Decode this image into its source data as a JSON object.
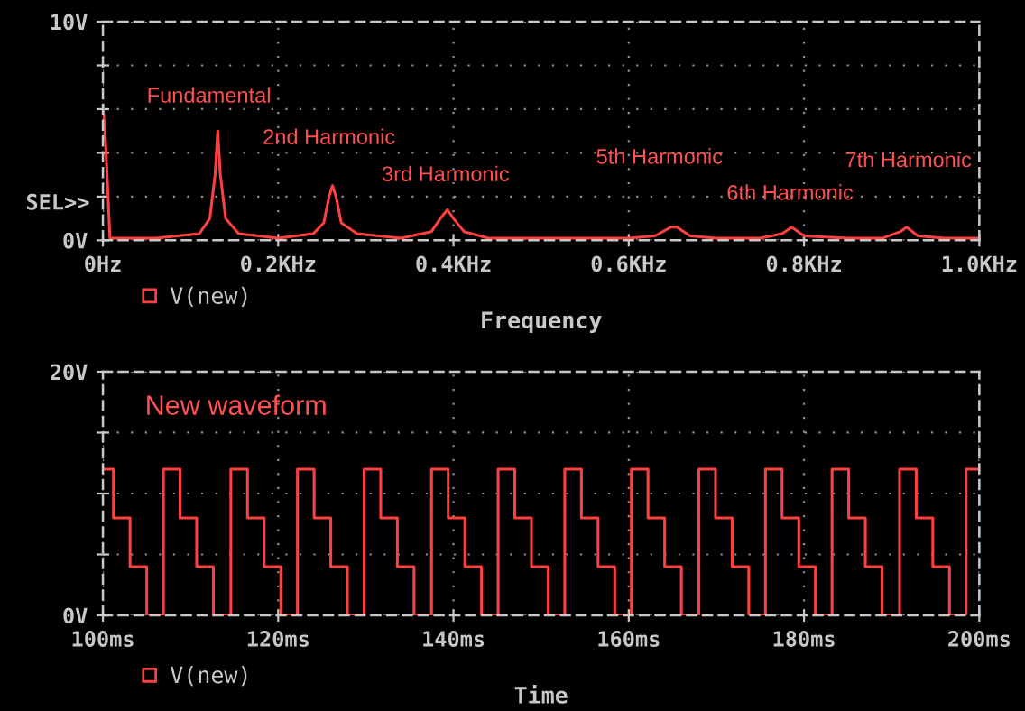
{
  "chart_data": [
    {
      "type": "line",
      "xlabel": "Frequency",
      "xlim": [
        0,
        1.0
      ],
      "ylim": [
        0,
        10
      ],
      "xticks": [
        {
          "value": 0,
          "label": "0Hz"
        },
        {
          "value": 0.2,
          "label": "0.2KHz"
        },
        {
          "value": 0.4,
          "label": "0.4KHz"
        },
        {
          "value": 0.6,
          "label": "0.6KHz"
        },
        {
          "value": 0.8,
          "label": "0.8KHz"
        },
        {
          "value": 1.0,
          "label": "1.0KHz"
        }
      ],
      "yticks": [
        {
          "value": 0,
          "label": "0V"
        },
        {
          "value": 2,
          "label": null
        },
        {
          "value": 4,
          "label": null
        },
        {
          "value": 6,
          "label": null
        },
        {
          "value": 8,
          "label": null
        },
        {
          "value": 10,
          "label": "10V"
        }
      ],
      "grid": true,
      "legend": "bottom left",
      "marker": "none",
      "line_style": "solid",
      "series": [
        {
          "name": "V(new)",
          "color": "#ff4040",
          "x": [
            0,
            0.003,
            0.008,
            0.06,
            0.11,
            0.122,
            0.128,
            0.131,
            0.134,
            0.14,
            0.155,
            0.2,
            0.24,
            0.252,
            0.258,
            0.262,
            0.266,
            0.272,
            0.29,
            0.34,
            0.375,
            0.385,
            0.393,
            0.4,
            0.412,
            0.44,
            0.6,
            0.63,
            0.648,
            0.655,
            0.67,
            0.7,
            0.75,
            0.775,
            0.786,
            0.8,
            0.85,
            0.89,
            0.91,
            0.917,
            0.93,
            0.96,
            1.0
          ],
          "values": [
            6.2,
            4.5,
            0.1,
            0.1,
            0.3,
            1.0,
            3.0,
            5.0,
            3.0,
            1.0,
            0.3,
            0.1,
            0.3,
            0.8,
            2.0,
            2.5,
            2.0,
            0.8,
            0.3,
            0.1,
            0.4,
            1.0,
            1.4,
            1.0,
            0.4,
            0.1,
            0.1,
            0.2,
            0.6,
            0.6,
            0.2,
            0.1,
            0.1,
            0.3,
            0.6,
            0.2,
            0.1,
            0.1,
            0.4,
            0.6,
            0.2,
            0.1,
            0.1
          ]
        }
      ],
      "annotations": [
        "Fundamental",
        "2nd Harmonic",
        "3rd Harmonic",
        "5th Harmonic",
        "6th Harmonic",
        "7th Harmonic",
        "SEL>>"
      ]
    },
    {
      "type": "step",
      "xlabel": "Time",
      "xlim": [
        100,
        200
      ],
      "ylim": [
        0,
        20
      ],
      "xticks": [
        {
          "value": 100,
          "label": "100ms"
        },
        {
          "value": 120,
          "label": "120ms"
        },
        {
          "value": 140,
          "label": "140ms"
        },
        {
          "value": 160,
          "label": "160ms"
        },
        {
          "value": 180,
          "label": "180ms"
        },
        {
          "value": 200,
          "label": "200ms"
        }
      ],
      "yticks": [
        {
          "value": 0,
          "label": "0V"
        },
        {
          "value": 5,
          "label": null
        },
        {
          "value": 10,
          "label": null
        },
        {
          "value": 15,
          "label": null
        },
        {
          "value": 20,
          "label": "20V"
        }
      ],
      "grid": true,
      "legend": "bottom left",
      "marker": "none",
      "line_style": "solid",
      "series": [
        {
          "name": "V(new)",
          "color": "#ff4040",
          "x": [
            100,
            101.2,
            103.1,
            105.0,
            106.9,
            108.8,
            110.7,
            112.6,
            114.6,
            116.5,
            118.4,
            120.3,
            122.2,
            124.1,
            126.0,
            127.9,
            129.8,
            131.7,
            133.6,
            135.5,
            137.5,
            139.4,
            141.3,
            143.2,
            145.1,
            147.0,
            148.9,
            150.8,
            152.7,
            154.6,
            156.5,
            158.4,
            160.3,
            162.2,
            164.1,
            166.0,
            168.0,
            169.9,
            171.8,
            173.7,
            175.6,
            177.5,
            179.4,
            181.3,
            183.2,
            185.1,
            187.0,
            188.9,
            190.9,
            192.8,
            194.7,
            196.6,
            198.5,
            200
          ],
          "values": [
            12,
            8,
            4,
            0,
            12,
            8,
            4,
            0,
            12,
            8,
            4,
            0,
            12,
            8,
            4,
            0,
            12,
            8,
            4,
            0,
            12,
            8,
            4,
            0,
            12,
            8,
            4,
            0,
            12,
            8,
            4,
            0,
            12,
            8,
            4,
            0,
            12,
            8,
            4,
            0,
            12,
            8,
            4,
            0,
            12,
            8,
            4,
            0,
            12,
            8,
            4,
            0,
            12,
            12
          ]
        }
      ],
      "annotations": [
        "New waveform"
      ]
    }
  ]
}
